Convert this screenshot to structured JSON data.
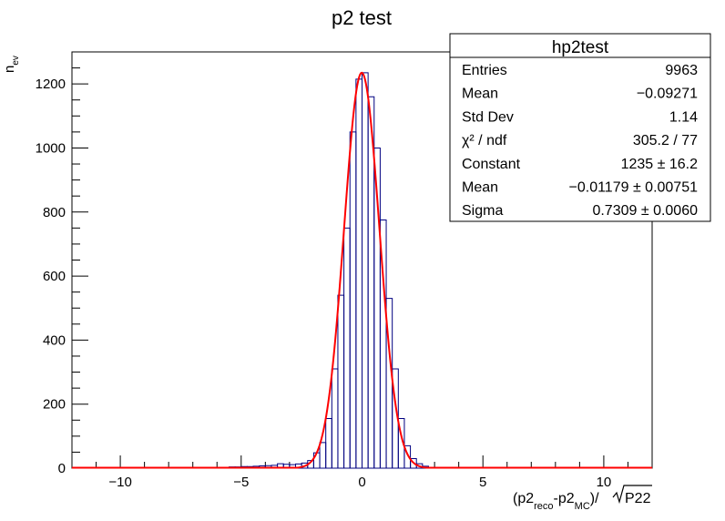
{
  "chart_data": {
    "type": "bar",
    "title": "p2 test",
    "ylabel": {
      "main": "n",
      "sub": "ev"
    },
    "xlabel": {
      "p1": "(p2",
      "s1": "reco",
      "p2": "-p2",
      "s2": "MC",
      "p3": ")/",
      "root": "P22"
    },
    "xlim": [
      -12,
      12
    ],
    "ylim": [
      0,
      1300
    ],
    "xticks": [
      -10,
      -5,
      0,
      5,
      10
    ],
    "xtick_labels": [
      "−10",
      "−5",
      "0",
      "5",
      "10"
    ],
    "yticks": [
      0,
      200,
      400,
      600,
      800,
      1000,
      1200
    ],
    "ytick_labels": [
      "0",
      "200",
      "400",
      "600",
      "800",
      "1000",
      "1200"
    ],
    "bin_width": 0.25,
    "histogram": {
      "name": "hp2test",
      "color": "#000080",
      "bins": [
        [
          -6.0,
          0.0,
          2
        ],
        [
          -5.75,
          0.0,
          3
        ],
        [
          -5.5,
          0.0,
          4
        ],
        [
          -5.25,
          0.0,
          4
        ],
        [
          -5.0,
          0.0,
          5
        ],
        [
          -4.75,
          0.0,
          5
        ],
        [
          -4.5,
          0.0,
          6
        ],
        [
          -4.25,
          0.0,
          7
        ],
        [
          -4.0,
          0.0,
          8
        ],
        [
          -3.75,
          0.0,
          9
        ],
        [
          -3.5,
          0.0,
          14
        ],
        [
          -3.25,
          0.0,
          12
        ],
        [
          -3.0,
          0.0,
          11
        ],
        [
          -2.75,
          0.0,
          13
        ],
        [
          -2.5,
          0.0,
          16
        ],
        [
          -2.25,
          0.0,
          24
        ],
        [
          -2.0,
          0.0,
          48
        ],
        [
          -1.75,
          0.0,
          80
        ],
        [
          -1.5,
          0.0,
          155
        ],
        [
          -1.25,
          0.0,
          310
        ],
        [
          -1.0,
          0.0,
          540
        ],
        [
          -0.75,
          0.0,
          750
        ],
        [
          -0.5,
          0.0,
          1050
        ],
        [
          -0.25,
          0.0,
          1215
        ],
        [
          0.0,
          0.0,
          1235
        ],
        [
          0.25,
          0.0,
          1160
        ],
        [
          0.5,
          0.0,
          1000
        ],
        [
          0.75,
          0.0,
          775
        ],
        [
          1.0,
          0.0,
          530
        ],
        [
          1.25,
          0.0,
          310
        ],
        [
          1.5,
          0.0,
          155
        ],
        [
          1.75,
          0.0,
          70
        ],
        [
          2.0,
          0.0,
          30
        ],
        [
          2.25,
          0.0,
          14
        ],
        [
          2.5,
          0.0,
          6
        ],
        [
          2.75,
          0.0,
          3
        ],
        [
          3.0,
          0.0,
          2
        ],
        [
          3.25,
          0.0,
          1
        ]
      ]
    },
    "fit": {
      "type": "gaus",
      "color": "#ff0000",
      "constant": 1235,
      "mean": -0.01179,
      "sigma": 0.7309
    },
    "stats_box": {
      "title": "hp2test",
      "rows": [
        {
          "label": "Entries",
          "value": "9963"
        },
        {
          "label": "Mean",
          "value": "−0.09271"
        },
        {
          "label": "Std Dev",
          "value": "1.14"
        },
        {
          "label": "χ² / ndf",
          "value": "305.2 / 77"
        },
        {
          "label": "Constant",
          "value": "1235 ± 16.2"
        },
        {
          "label": "Mean",
          "value": "−0.01179 ± 0.00751"
        },
        {
          "label": "Sigma",
          "value": "0.7309 ± 0.0060"
        }
      ]
    }
  }
}
